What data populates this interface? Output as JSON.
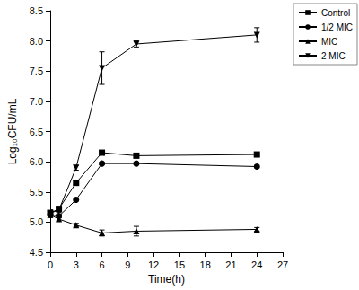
{
  "chart_data": {
    "type": "line",
    "x_label": "Time(h)",
    "y_label": "Log₁₀CFU/mL",
    "x": [
      0,
      1,
      3,
      6,
      10,
      24
    ],
    "series": [
      {
        "name": "Control",
        "color": "#000000",
        "marker": "square",
        "values": [
          5.15,
          5.22,
          5.65,
          6.15,
          6.1,
          6.12
        ],
        "errors": [
          0.05,
          0.03,
          0.03,
          0.02,
          0.03,
          0.02
        ]
      },
      {
        "name": "1/2 MIC",
        "color": "#000000",
        "marker": "circle",
        "values": [
          5.12,
          5.1,
          5.37,
          5.97,
          5.97,
          5.92
        ],
        "errors": [
          0.04,
          0.03,
          0.02,
          0.02,
          0.02,
          0.02
        ]
      },
      {
        "name": "MIC",
        "color": "#000000",
        "marker": "triangle",
        "values": [
          5.12,
          5.05,
          4.95,
          4.82,
          4.85,
          4.88
        ],
        "errors": [
          0.03,
          0.03,
          0.03,
          0.05,
          0.08,
          0.03
        ]
      },
      {
        "name": "2 MIC",
        "color": "#000000",
        "marker": "triangle_down",
        "values": [
          5.15,
          5.2,
          5.9,
          7.55,
          7.95,
          8.1
        ],
        "errors": [
          0.05,
          0.04,
          0.04,
          0.27,
          0.05,
          0.12
        ]
      }
    ],
    "xlim": [
      0,
      27
    ],
    "xticks": [
      0,
      3,
      6,
      9,
      12,
      15,
      18,
      21,
      24,
      27
    ],
    "ylim": [
      4.5,
      8.5
    ],
    "yticks": [
      4.5,
      {
        "value": 5.0,
        "label": "5.0"
      },
      5.5,
      {
        "value": 6.0,
        "label": "6.0"
      },
      6.5,
      {
        "value": 7.0,
        "label": "7.0"
      },
      7.5,
      {
        "value": 8.0,
        "label": "8.0"
      },
      8.5
    ],
    "grid": false,
    "legend": "upper right"
  }
}
